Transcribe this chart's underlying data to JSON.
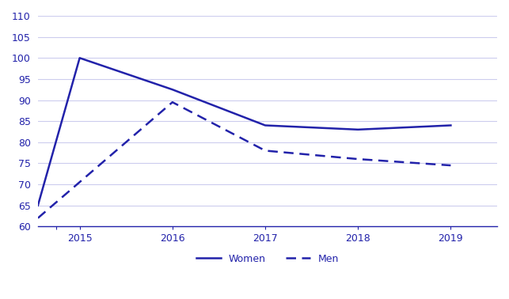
{
  "women_x": [
    2014.55,
    2015,
    2016,
    2017,
    2018,
    2019
  ],
  "women_y": [
    65,
    100,
    92.5,
    84,
    83,
    84
  ],
  "men_x": [
    2014.55,
    2016,
    2017,
    2018,
    2019
  ],
  "men_y": [
    62,
    89.5,
    78,
    76,
    74.5
  ],
  "line_color": "#2222AA",
  "ylim": [
    60,
    110
  ],
  "yticks": [
    60,
    65,
    70,
    75,
    80,
    85,
    90,
    95,
    100,
    105,
    110
  ],
  "xticks": [
    2014.75,
    2015,
    2016,
    2017,
    2018,
    2019
  ],
  "xticklabels": [
    "",
    "2015",
    "2016",
    "2017",
    "2018",
    "2019"
  ],
  "xlim_left": 2014.55,
  "xlim_right": 2019.5,
  "grid_color": "#ccccee",
  "legend_women": "Women",
  "legend_men": "Men",
  "background_color": "#ffffff"
}
